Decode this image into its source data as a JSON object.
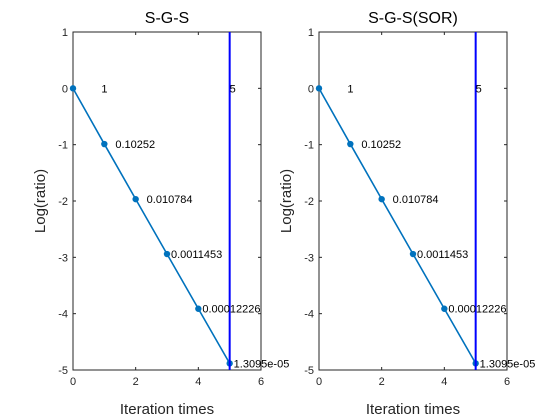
{
  "chart_data": [
    {
      "type": "line",
      "title": "S-G-S",
      "xlabel": "Iteration times",
      "ylabel": "Log(ratio)",
      "xlim": [
        0,
        6
      ],
      "ylim": [
        -5,
        1
      ],
      "xticks": [
        "0",
        "2",
        "4",
        "6"
      ],
      "yticks": [
        "1",
        "0",
        "-1",
        "-2",
        "-3",
        "-4",
        "-5"
      ],
      "grid": false,
      "line_color": "#0072bd",
      "series": [
        {
          "x": [
            0,
            1,
            2,
            3,
            4,
            5
          ],
          "y": [
            0,
            -0.9892,
            -1.9672,
            -2.9411,
            -3.9127,
            -4.8829
          ]
        }
      ],
      "point_labels": [
        "1",
        "0.10252",
        "0.010784",
        "0.0011453",
        "0.00012226",
        "1.3095e-05"
      ],
      "vline": {
        "x": 5,
        "label": "5",
        "color": "#0000ff"
      }
    },
    {
      "type": "line",
      "title": "S-G-S(SOR)",
      "xlabel": "Iteration times",
      "ylabel": "Log(ratio)",
      "xlim": [
        0,
        6
      ],
      "ylim": [
        -5,
        1
      ],
      "xticks": [
        "0",
        "2",
        "4",
        "6"
      ],
      "yticks": [
        "1",
        "0",
        "-1",
        "-2",
        "-3",
        "-4",
        "-5"
      ],
      "grid": false,
      "line_color": "#0072bd",
      "series": [
        {
          "x": [
            0,
            1,
            2,
            3,
            4,
            5
          ],
          "y": [
            0,
            -0.9892,
            -1.9672,
            -2.9411,
            -3.9127,
            -4.8829
          ]
        }
      ],
      "point_labels": [
        "1",
        "0.10252",
        "0.010784",
        "0.0011453",
        "0.00012226",
        "1.3095e-05"
      ],
      "vline": {
        "x": 5,
        "label": "5",
        "color": "#0000ff"
      }
    }
  ]
}
